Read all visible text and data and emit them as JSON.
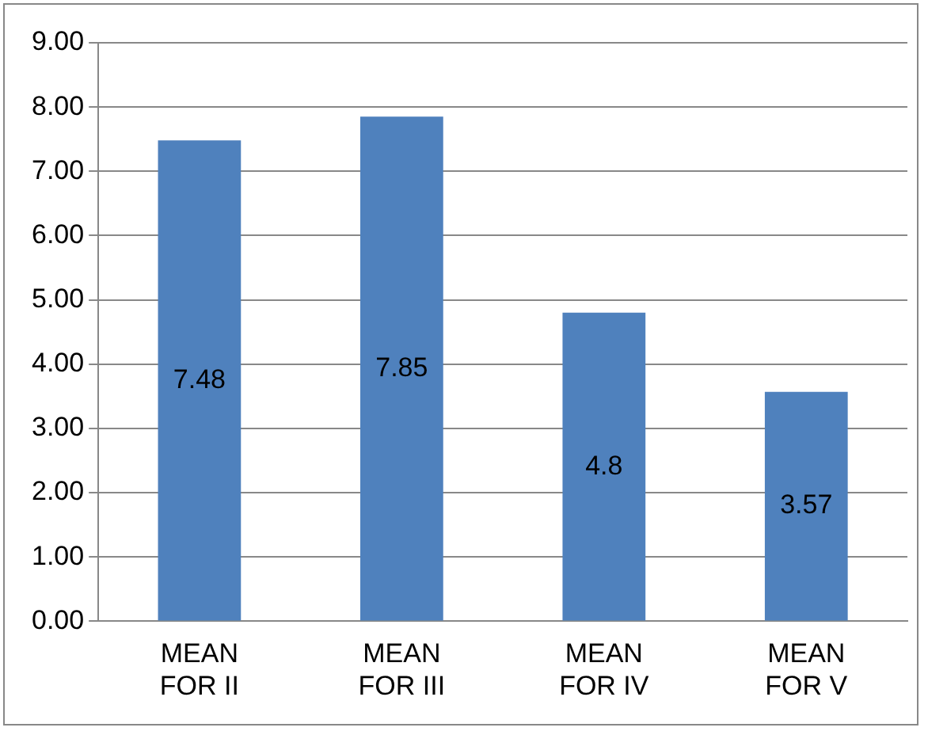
{
  "chart_data": {
    "type": "bar",
    "categories": [
      "MEAN FOR II",
      "MEAN FOR III",
      "MEAN FOR IV",
      "MEAN FOR V"
    ],
    "values": [
      7.48,
      7.85,
      4.8,
      3.57
    ],
    "color": "#4f81bd",
    "ylim": [
      0,
      9
    ],
    "yticks": [
      {
        "value": 0,
        "label": "0.00"
      },
      {
        "value": 1,
        "label": "1.00"
      },
      {
        "value": 2,
        "label": "2.00"
      },
      {
        "value": 3,
        "label": "3.00"
      },
      {
        "value": 4,
        "label": "4.00"
      },
      {
        "value": 5,
        "label": "5.00"
      },
      {
        "value": 6,
        "label": "6.00"
      },
      {
        "value": 7,
        "label": "7.00"
      },
      {
        "value": 8,
        "label": "8.00"
      },
      {
        "value": 9,
        "label": "9.00"
      }
    ],
    "grid": "y",
    "data_labels": true
  }
}
